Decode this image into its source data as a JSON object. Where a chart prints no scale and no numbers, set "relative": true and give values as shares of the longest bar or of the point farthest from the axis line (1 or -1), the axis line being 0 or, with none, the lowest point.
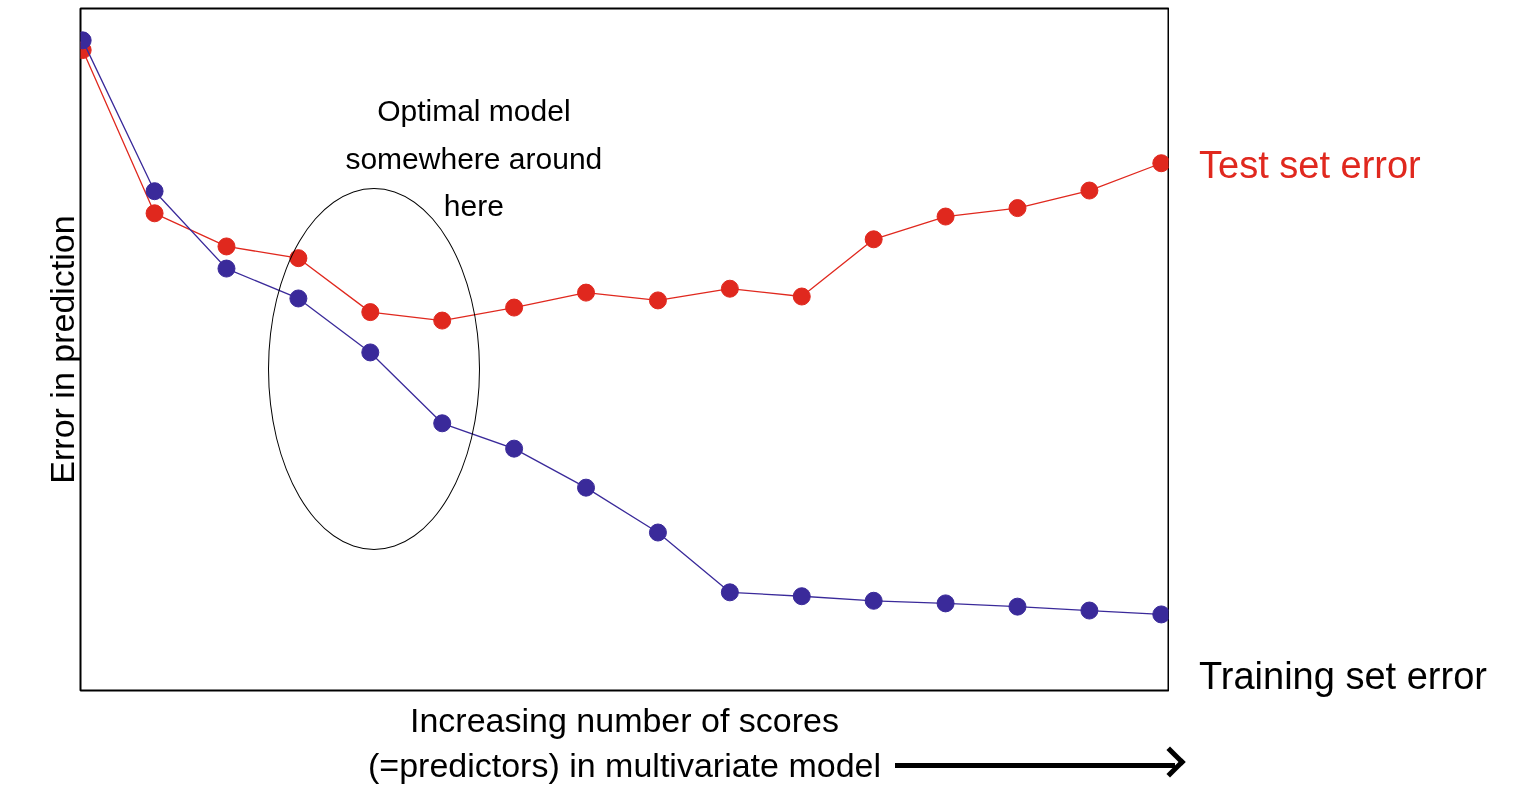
{
  "chart_data": {
    "type": "line",
    "relative": true,
    "xlabel": "Increasing number of scores\n(=predictors) in multivariate model",
    "ylabel": "Error in prediction",
    "categories": [
      null,
      null,
      null,
      null,
      null,
      null,
      null,
      null,
      null,
      null,
      null,
      null,
      null,
      null,
      null,
      null
    ],
    "series": [
      {
        "name": "Test set error",
        "color": "#e0281e",
        "values": [
          0.985,
          0.734,
          0.683,
          0.665,
          0.582,
          0.569,
          0.589,
          0.612,
          0.6,
          0.618,
          0.606,
          0.694,
          0.729,
          0.742,
          0.769,
          0.811
        ]
      },
      {
        "name": "Training set error",
        "color": "#3a2a9a",
        "values": [
          1.0,
          0.768,
          0.649,
          0.603,
          0.52,
          0.411,
          0.372,
          0.312,
          0.243,
          0.151,
          0.145,
          0.138,
          0.134,
          0.129,
          0.123,
          0.117
        ]
      }
    ],
    "annotations": [
      "Optimal model\nsomewhere around\nhere"
    ],
    "marker": "circle",
    "line_style": "solid"
  }
}
